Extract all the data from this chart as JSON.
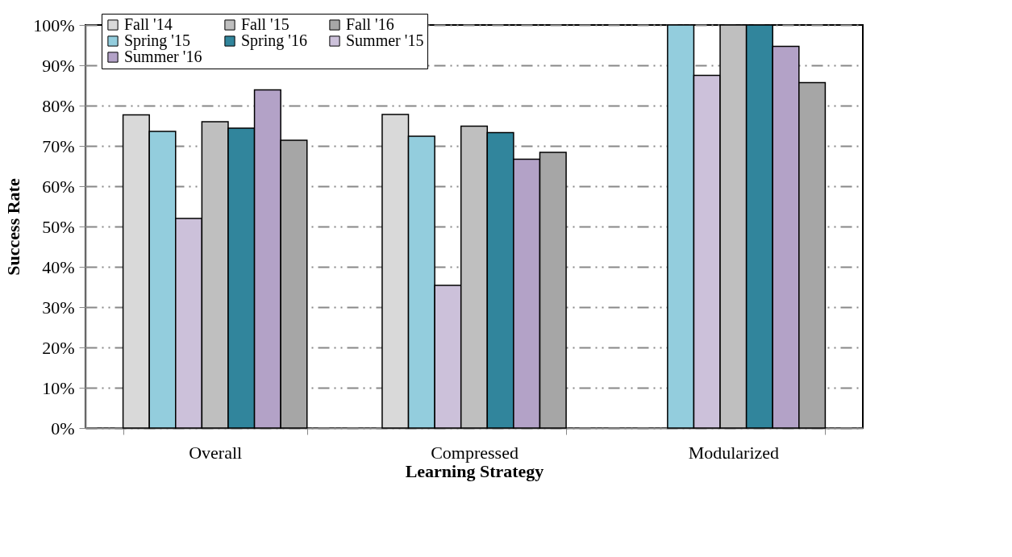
{
  "chart_data": {
    "type": "bar",
    "xlabel": "Learning Strategy",
    "ylabel": "Success Rate",
    "categories": [
      "Overall",
      "Compressed",
      "Modularized"
    ],
    "series": [
      {
        "name": "Fall '14",
        "color": "#d9d9d9",
        "values": [
          77.7,
          77.8,
          null
        ]
      },
      {
        "name": "Spring '15",
        "color": "#93cddd",
        "values": [
          73.6,
          72.4,
          100
        ]
      },
      {
        "name": "Summer '15",
        "color": "#ccc1da",
        "values": [
          52.0,
          35.4,
          87.5
        ]
      },
      {
        "name": "Fall '15",
        "color": "#bfbfbf",
        "values": [
          76.0,
          74.9,
          100
        ]
      },
      {
        "name": "Spring '16",
        "color": "#31859c",
        "values": [
          74.4,
          73.3,
          100
        ]
      },
      {
        "name": "Summer '16",
        "color": "#b3a2c7",
        "values": [
          83.9,
          66.7,
          94.7
        ]
      },
      {
        "name": "Fall '16",
        "color": "#a6a6a6",
        "values": [
          71.4,
          68.4,
          85.7
        ]
      }
    ],
    "ylim": [
      0,
      100
    ],
    "yticks": [
      {
        "value": 0,
        "label": "0%"
      },
      {
        "value": 10,
        "label": "10%"
      },
      {
        "value": 20,
        "label": "20%"
      },
      {
        "value": 30,
        "label": "30%"
      },
      {
        "value": 40,
        "label": "40%"
      },
      {
        "value": 50,
        "label": "50%"
      },
      {
        "value": 60,
        "label": "60%"
      },
      {
        "value": 70,
        "label": "70%"
      },
      {
        "value": 80,
        "label": "80%"
      },
      {
        "value": 90,
        "label": "90%"
      },
      {
        "value": 100,
        "label": "100%"
      }
    ],
    "grid": "y",
    "legend": "top left"
  }
}
